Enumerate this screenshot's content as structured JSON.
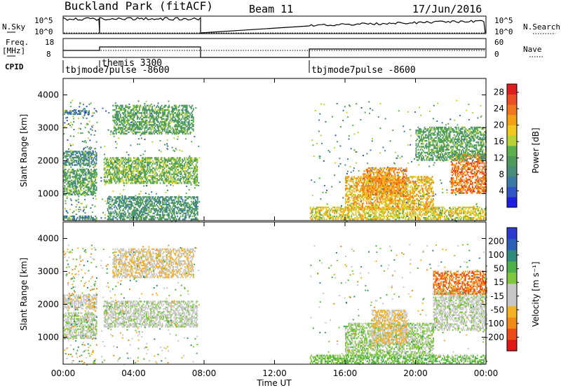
{
  "header": {
    "title": "Buckland Park (fitACF)",
    "beam": "Beam 11",
    "date": "17/Jun/2016"
  },
  "top_panels": {
    "nsky_label": "N.Sky",
    "nsky_ticks": [
      "10^5",
      "10^0"
    ],
    "nsearch_label": "N.Search",
    "nsearch_ticks": [
      "10^5",
      "10^0"
    ],
    "freq_label": "Freq.",
    "freq_unit": "[MHz]",
    "freq_ticks": [
      "18",
      "8"
    ],
    "nave_label": "Nave",
    "nave_ticks": [
      "60",
      "0"
    ],
    "cpid_label": "CPID",
    "cpid_entries": [
      {
        "name": "tbjmode7pulse -8600",
        "start_hour": 0
      },
      {
        "name": "themis 3300",
        "start_hour": 2
      },
      {
        "name": "tbjmode7pulse -8600",
        "start_hour": 14
      }
    ]
  },
  "chart_data": [
    {
      "type": "heatmap",
      "title": "",
      "xlabel": "Time UT",
      "ylabel": "Slant Range [km]",
      "xlim": [
        0,
        24
      ],
      "ylim": [
        180,
        4500
      ],
      "x_ticks": [
        "00:00",
        "04:00",
        "08:00",
        "12:00",
        "16:00",
        "20:00",
        "00:00"
      ],
      "y_ticks": [
        "1000",
        "2000",
        "3000",
        "4000"
      ],
      "colorbar": {
        "label": "Power [dB]",
        "ticks": [
          "4",
          "8",
          "12",
          "16",
          "20",
          "24",
          "28"
        ],
        "range": [
          0,
          30
        ],
        "colors": [
          "#1E1EE0",
          "#2E54C8",
          "#3C7AA6",
          "#4A8C7A",
          "#4E9A5C",
          "#5CB04C",
          "#B9D236",
          "#F0C81E",
          "#F5A014",
          "#F2761E",
          "#EA4E22",
          "#E02020"
        ]
      },
      "data_windows_hours": [
        [
          0,
          1.9
        ],
        [
          2.1,
          7.7
        ],
        [
          14,
          24
        ]
      ],
      "echo_regions": [
        {
          "t0": 0.0,
          "t1": 1.9,
          "r0": 200,
          "r1": 330,
          "value": 8
        },
        {
          "t0": 0.0,
          "t1": 1.9,
          "r0": 950,
          "r1": 1750,
          "value": 12
        },
        {
          "t0": 0.0,
          "t1": 1.9,
          "r0": 1850,
          "r1": 2300,
          "value": 9
        },
        {
          "t0": 0.0,
          "t1": 1.5,
          "r0": 3400,
          "r1": 3500,
          "value": 6
        },
        {
          "t0": 2.3,
          "t1": 7.6,
          "r0": 1300,
          "r1": 2100,
          "value": 14
        },
        {
          "t0": 2.8,
          "t1": 7.4,
          "r0": 2800,
          "r1": 3700,
          "value": 12
        },
        {
          "t0": 2.5,
          "t1": 7.6,
          "r0": 200,
          "r1": 900,
          "value": 10
        },
        {
          "t0": 14.0,
          "t1": 24.0,
          "r0": 200,
          "r1": 600,
          "value": 18
        },
        {
          "t0": 16.0,
          "t1": 21.0,
          "r0": 500,
          "r1": 1500,
          "value": 20
        },
        {
          "t0": 17.0,
          "t1": 19.5,
          "r0": 900,
          "r1": 1800,
          "value": 22
        },
        {
          "t0": 22.0,
          "t1": 24.0,
          "r0": 1000,
          "r1": 2200,
          "value": 24
        },
        {
          "t0": 20.0,
          "t1": 24.0,
          "r0": 2000,
          "r1": 3000,
          "value": 12
        }
      ]
    },
    {
      "type": "heatmap",
      "title": "",
      "xlabel": "Time UT",
      "ylabel": "Slant Range [km]",
      "xlim": [
        0,
        24
      ],
      "ylim": [
        180,
        4500
      ],
      "x_ticks": [
        "00:00",
        "04:00",
        "08:00",
        "12:00",
        "16:00",
        "20:00",
        "00:00"
      ],
      "y_ticks": [
        "1000",
        "2000",
        "3000",
        "4000"
      ],
      "colorbar": {
        "label": "Velocity [m s⁻¹]",
        "ticks": [
          "200",
          "100",
          "50",
          "15",
          "-15",
          "-50",
          "-100",
          "-200"
        ],
        "range": [
          -250,
          250
        ],
        "colors": [
          "#E01818",
          "#EE4A18",
          "#F28A18",
          "#F5B224",
          "#C8C8C8",
          "#C8C8C8",
          "#7FC83C",
          "#4EB048",
          "#2E8C7A",
          "#2C60B8",
          "#2C3AD0"
        ]
      },
      "data_windows_hours": [
        [
          0,
          1.9
        ],
        [
          2.1,
          7.7
        ],
        [
          14,
          24
        ]
      ],
      "echo_regions": [
        {
          "t0": 0.0,
          "t1": 1.9,
          "r0": 950,
          "r1": 1750,
          "value": 10
        },
        {
          "t0": 0.0,
          "t1": 1.9,
          "r0": 1850,
          "r1": 2300,
          "value": -40
        },
        {
          "t0": 2.3,
          "t1": 7.6,
          "r0": 1300,
          "r1": 2100,
          "value": 0
        },
        {
          "t0": 2.8,
          "t1": 7.4,
          "r0": 2800,
          "r1": 3700,
          "value": -60
        },
        {
          "t0": 14.0,
          "t1": 24.0,
          "r0": 200,
          "r1": 450,
          "value": 60
        },
        {
          "t0": 16.0,
          "t1": 21.0,
          "r0": 450,
          "r1": 1400,
          "value": 30
        },
        {
          "t0": 17.5,
          "t1": 19.5,
          "r0": 800,
          "r1": 1800,
          "value": -70
        },
        {
          "t0": 21.0,
          "t1": 24.0,
          "r0": 1200,
          "r1": 2400,
          "value": 0
        },
        {
          "t0": 21.0,
          "t1": 24.0,
          "r0": 2300,
          "r1": 3000,
          "value": -150
        }
      ]
    }
  ]
}
